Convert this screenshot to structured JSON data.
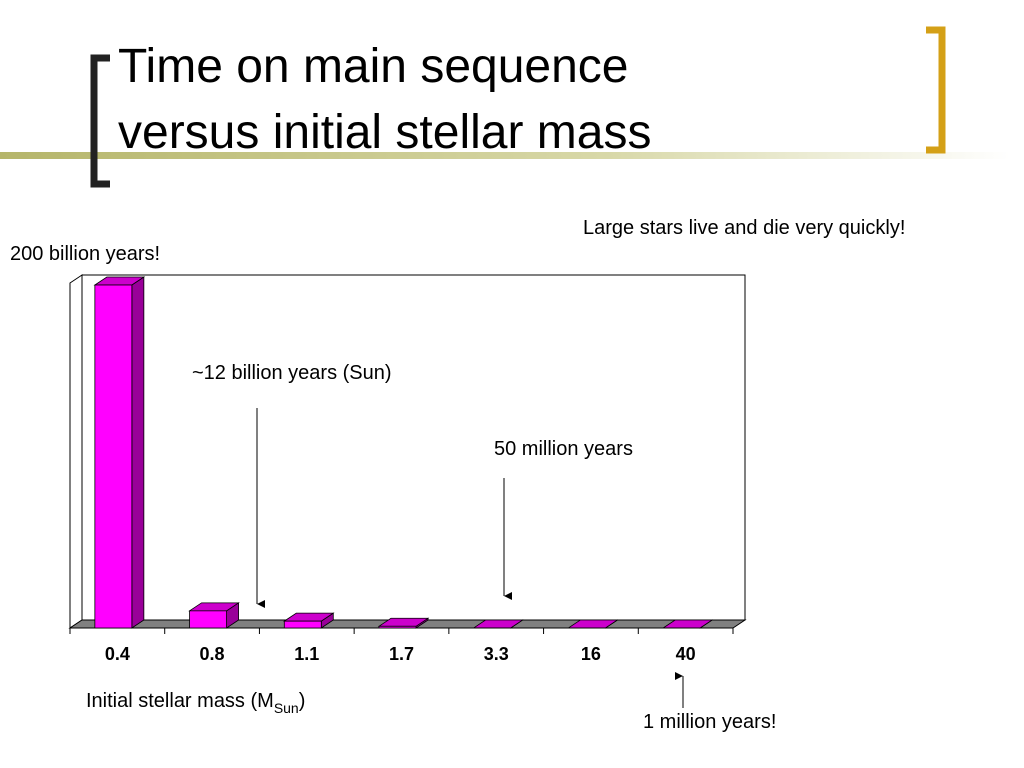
{
  "title_lines": [
    "Time on main sequence",
    "versus initial stellar mass"
  ],
  "chart_data": {
    "type": "bar",
    "categories": [
      "0.4",
      "0.8",
      "1.1",
      "1.7",
      "3.3",
      "16",
      "40"
    ],
    "values": [
      200,
      10,
      4,
      1,
      0.05,
      0.02,
      0.001
    ],
    "ylim": [
      0,
      200
    ],
    "color": "#ff00ff",
    "side_color": "#990099",
    "top_color": "#cc00cc",
    "x_label": {
      "text": "Initial stellar mass (M",
      "subscript": "Sun",
      "close": ")"
    },
    "annotations": [
      "200 billion years!",
      "Large stars live and die very quickly!",
      "~12 billion years (Sun)",
      "50 million years",
      "1 million years!"
    ]
  }
}
